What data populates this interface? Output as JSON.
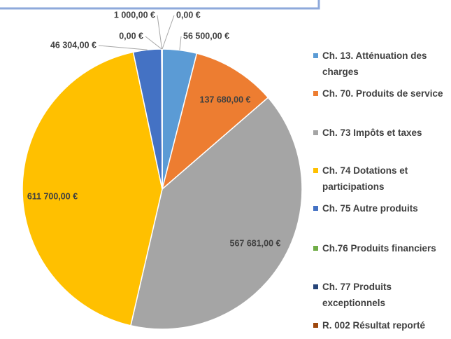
{
  "chart_data": {
    "type": "pie",
    "categories": [
      "Ch. 13. Atténuation des charges",
      "Ch. 70. Produits de service",
      "Ch. 73 Impôts et taxes",
      "Ch. 74 Dotations et participations",
      "Ch. 75 Autre produits",
      "Ch.76 Produits financiers",
      "Ch. 77 Produits exceptionnels",
      "R. 002 Résultat reporté"
    ],
    "values": [
      56500,
      137680,
      567681,
      611700,
      46304,
      0,
      1000,
      0
    ],
    "value_labels": [
      "56 500,00 €",
      "137 680,00 €",
      "567 681,00 €",
      "611 700,00 €",
      "46 304,00 €",
      "0,00 €",
      "1 000,00 €",
      "0,00 €"
    ],
    "colors": [
      "#5b9bd5",
      "#ed7d31",
      "#a5a5a5",
      "#ffc000",
      "#4472c4",
      "#70ad47",
      "#264478",
      "#9e480e"
    ],
    "legend": "right"
  }
}
